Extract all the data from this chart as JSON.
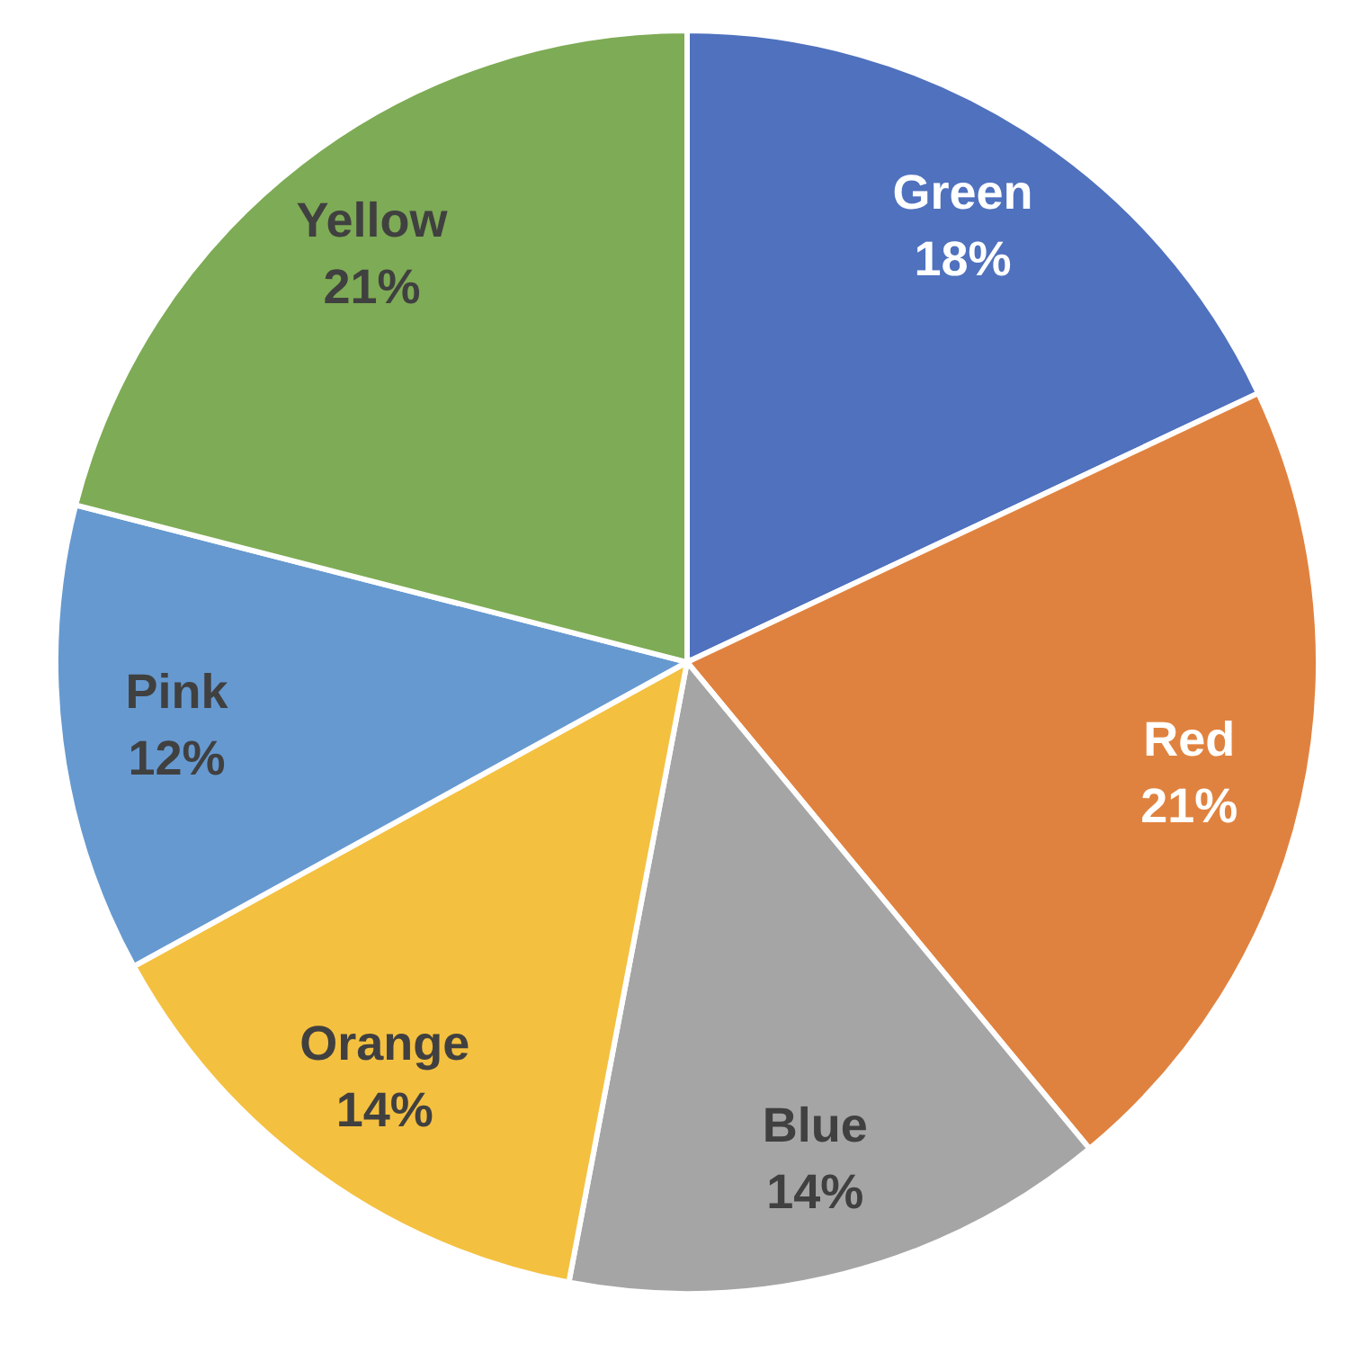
{
  "chart_data": {
    "type": "pie",
    "categories": [
      "Green",
      "Red",
      "Blue",
      "Orange",
      "Pink",
      "Yellow"
    ],
    "values": [
      18,
      21,
      14,
      14,
      12,
      21
    ],
    "colors": [
      "#4f71be",
      "#e0823f",
      "#a5a5a5",
      "#f4c040",
      "#6699d0",
      "#7eab55"
    ],
    "value_labels": [
      "18%",
      "21%",
      "14%",
      "14%",
      "12%",
      "21%"
    ]
  }
}
